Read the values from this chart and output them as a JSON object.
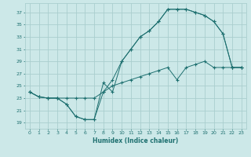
{
  "xlabel": "Humidex (Indice chaleur)",
  "bg_color": "#cce8e8",
  "grid_color": "#aacece",
  "line_color": "#1e7070",
  "xlim": [
    -0.5,
    23.5
  ],
  "ylim": [
    18.0,
    38.5
  ],
  "yticks": [
    19,
    21,
    23,
    25,
    27,
    29,
    31,
    33,
    35,
    37
  ],
  "xticks": [
    0,
    1,
    2,
    3,
    4,
    5,
    6,
    7,
    8,
    9,
    10,
    11,
    12,
    13,
    14,
    15,
    16,
    17,
    18,
    19,
    20,
    21,
    22,
    23
  ],
  "line1_x": [
    0,
    1,
    2,
    3,
    4,
    5,
    6,
    7,
    8,
    9,
    10,
    11,
    12,
    13,
    14,
    15,
    16,
    17,
    18,
    19,
    20,
    21,
    22,
    23
  ],
  "line1_y": [
    24,
    23.2,
    23,
    23,
    22,
    20,
    19.5,
    19.5,
    24,
    26,
    29,
    31,
    33,
    34,
    35.5,
    37.5,
    37.5,
    37.5,
    37,
    36.5,
    35.5,
    33.5,
    28,
    28
  ],
  "line2_x": [
    0,
    1,
    2,
    3,
    4,
    5,
    6,
    7,
    8,
    9,
    10,
    11,
    12,
    13,
    14,
    15,
    16,
    17,
    18,
    19,
    20,
    21,
    22,
    23
  ],
  "line2_y": [
    24,
    23.2,
    23,
    23,
    22,
    20,
    19.5,
    19.5,
    25.5,
    24,
    29,
    31,
    33,
    34,
    35.5,
    37.5,
    37.5,
    37.5,
    37,
    36.5,
    35.5,
    33.5,
    28,
    28
  ],
  "line3_x": [
    0,
    1,
    2,
    3,
    4,
    5,
    6,
    7,
    8,
    9,
    10,
    11,
    12,
    13,
    14,
    15,
    16,
    17,
    18,
    19,
    20,
    21,
    22,
    23
  ],
  "line3_y": [
    24,
    23.2,
    23,
    23,
    23,
    23,
    23,
    23,
    24,
    25,
    25.5,
    26,
    26.5,
    27,
    27.5,
    28,
    26,
    28,
    28.5,
    29,
    28,
    28,
    28,
    28
  ]
}
